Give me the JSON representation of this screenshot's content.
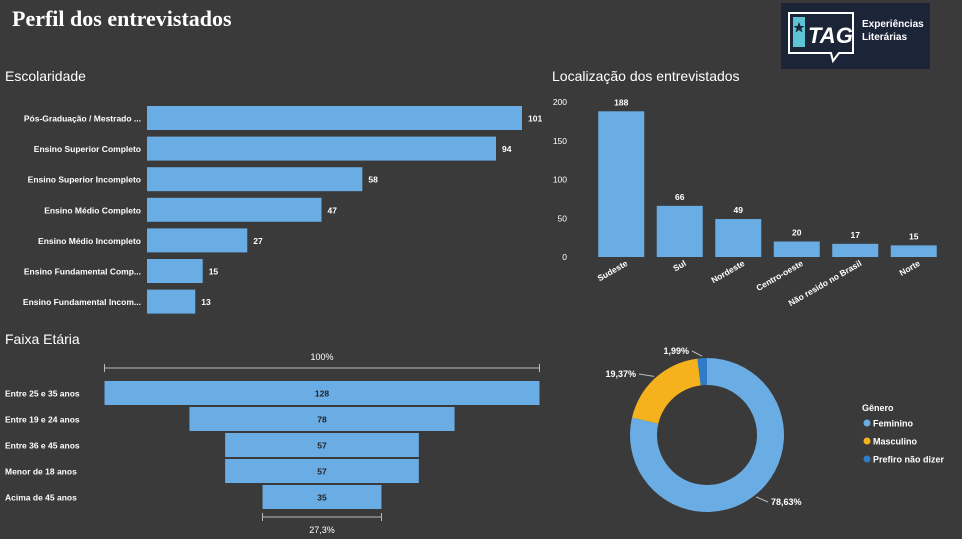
{
  "header": {
    "title": "Perfil dos entrevistados",
    "logo": {
      "mark": "TAG",
      "line1": "Experiências",
      "line2": "Literárias"
    }
  },
  "colors": {
    "background": "#3a3a3a",
    "bar": "#6aace4",
    "blue_dark": "#2f7dc8",
    "orange": "#f5b21c",
    "text": "#ffffff",
    "axis": "#cccccc"
  },
  "chart_data": [
    {
      "id": "escolaridade",
      "type": "bar",
      "orientation": "horizontal",
      "title": "Escolaridade",
      "categories": [
        "Pós-Graduação / Mestrado ...",
        "Ensino Superior Completo",
        "Ensino Superior Incompleto",
        "Ensino Médio Completo",
        "Ensino Médio Incompleto",
        "Ensino Fundamental Comp...",
        "Ensino Fundamental Incom..."
      ],
      "values": [
        101,
        94,
        58,
        47,
        27,
        15,
        13
      ]
    },
    {
      "id": "localizacao",
      "type": "bar",
      "title": "Localização dos entrevistados",
      "categories": [
        "Sudeste",
        "Sul",
        "Nordeste",
        "Centro-oeste",
        "Não resido no Brasil",
        "Norte"
      ],
      "values": [
        188,
        66,
        49,
        20,
        17,
        15
      ],
      "yticks": [
        0,
        50,
        100,
        150,
        200
      ],
      "ylim": [
        0,
        200
      ],
      "grid": false
    },
    {
      "id": "faixa_etaria",
      "type": "funnel",
      "title": "Faixa Etária",
      "categories": [
        "Entre 25 e 35 anos",
        "Entre 19 e 24 anos",
        "Entre 36 e 45 anos",
        "Menor de 18 anos",
        "Acima de 45 anos"
      ],
      "values": [
        128,
        78,
        57,
        57,
        35
      ],
      "top_label": "100%",
      "bottom_label": "27,3%"
    },
    {
      "id": "genero",
      "type": "pie",
      "donut": true,
      "legend_title": "Gênero",
      "legend_position": "right",
      "labels": [
        "Feminino",
        "Masculino",
        "Prefiro não dizer"
      ],
      "values": [
        78.63,
        19.37,
        1.99
      ],
      "value_labels": [
        "78,63%",
        "19,37%",
        "1,99%"
      ],
      "colors": [
        "#6aace4",
        "#f5b21c",
        "#2f7dc8"
      ]
    }
  ]
}
